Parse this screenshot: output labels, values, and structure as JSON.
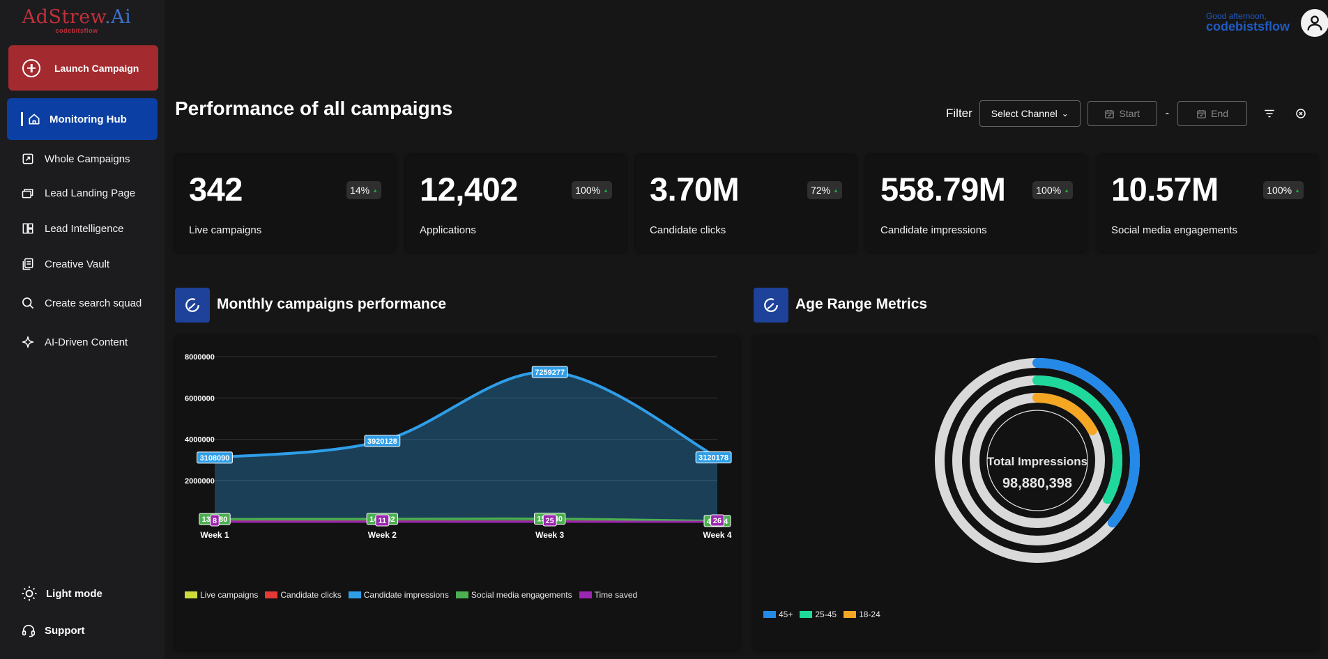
{
  "brand": {
    "logo_main_a": "AdStrew",
    "logo_main_b": ".Ai",
    "logo_sub": "codebitsflow"
  },
  "sidebar": {
    "launch_label": "Launch Campaign",
    "active_label": "Monitoring Hub",
    "items": [
      {
        "label": "Whole Campaigns",
        "icon": "campaign-icon"
      },
      {
        "label": "Lead Landing Page",
        "icon": "landing-page-icon"
      },
      {
        "label": "Lead Intelligence",
        "icon": "intelligence-icon"
      },
      {
        "label": "Creative Vault",
        "icon": "vault-icon"
      },
      {
        "label": "Create search squad",
        "icon": "search-icon"
      },
      {
        "label": "AI-Driven Content",
        "icon": "sparkle-icon"
      }
    ],
    "light_mode": "Light mode",
    "support": "Support"
  },
  "header": {
    "greeting": "Good afternoon,",
    "user": "codebistsflow"
  },
  "page": {
    "title": "Performance of all campaigns"
  },
  "filter": {
    "label": "Filter",
    "channel": "Select Channel",
    "start": "Start",
    "separator": "-",
    "end": "End"
  },
  "stats": [
    {
      "value": "342",
      "label": "Live campaigns",
      "change": "14%"
    },
    {
      "value": "12,402",
      "label": "Applications",
      "change": "100%"
    },
    {
      "value": "3.70M",
      "label": "Candidate clicks",
      "change": "72%"
    },
    {
      "value": "558.79M",
      "label": "Candidate impressions",
      "change": "100%"
    },
    {
      "value": "10.57M",
      "label": "Social media engagements",
      "change": "100%"
    }
  ],
  "monthly": {
    "title": "Monthly campaigns performance"
  },
  "age": {
    "title": "Age Range Metrics",
    "center_label": "Total Impressions",
    "center_value": "98,880,398"
  },
  "colors": {
    "accent_red": "#a32a2e",
    "accent_blue": "#0b3fa3",
    "impressions": "#2f9ee8",
    "social": "#4caf50",
    "time": "#9c27b0",
    "live": "#cddc39",
    "clicks": "#e53935"
  },
  "chart_data": [
    {
      "type": "area",
      "categories": [
        "Week 1",
        "Week 2",
        "Week 3",
        "Week 4"
      ],
      "ylim": [
        0,
        8000000
      ],
      "yticks": [
        "2000000",
        "4000000",
        "6000000",
        "8000000"
      ],
      "series": [
        {
          "name": "Live campaigns",
          "color": "#cddc39",
          "values": [
            20,
            25,
            30,
            15
          ]
        },
        {
          "name": "Candidate clicks",
          "color": "#e53935",
          "values": [
            15000,
            16000,
            17000,
            5000
          ]
        },
        {
          "name": "Candidate impressions",
          "color": "#2f9ee8",
          "values": [
            3108090,
            3920128,
            7259277,
            3120178
          ],
          "labels": [
            "3108090",
            "3920128",
            "7259277",
            "3120178"
          ]
        },
        {
          "name": "Social media engagements",
          "color": "#4caf50",
          "values": [
            130000,
            140000,
            150000,
            40000
          ],
          "labels": [
            "133680",
            "140052",
            "150040",
            "40334"
          ]
        },
        {
          "name": "Time saved",
          "color": "#9c27b0",
          "values": [
            8,
            11,
            25,
            26
          ],
          "labels": [
            "8",
            "11",
            "25",
            "26"
          ]
        }
      ]
    },
    {
      "type": "radial-bar",
      "title": "Age Range Metrics",
      "series": [
        {
          "name": "45+",
          "color": "#2589e8",
          "fraction": 0.36
        },
        {
          "name": "25-45",
          "color": "#1fd99c",
          "fraction": 0.33
        },
        {
          "name": "18-24",
          "color": "#f5a623",
          "fraction": 0.17
        }
      ]
    }
  ]
}
